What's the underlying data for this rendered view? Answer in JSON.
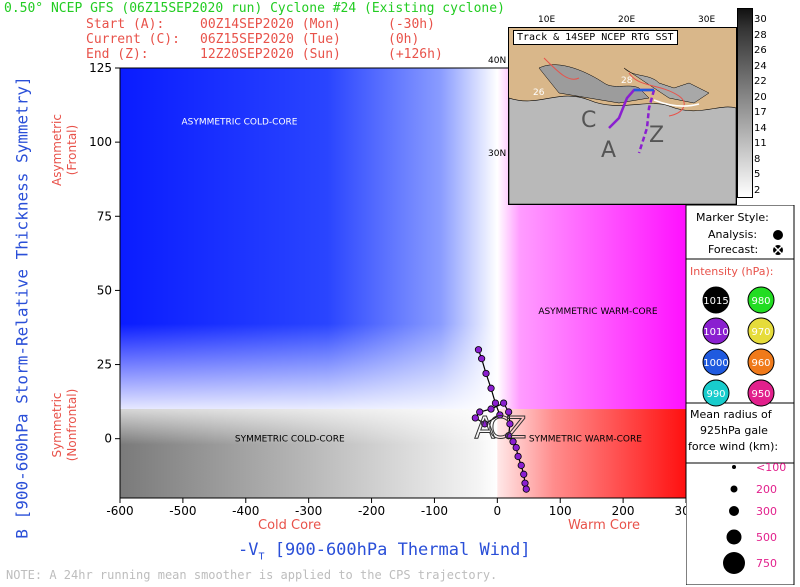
{
  "header": {
    "title": "0.50° NCEP GFS (06Z15SEP2020 run) Cyclone #24 (Existing cyclone)",
    "rows": [
      {
        "label": "Start (A):",
        "date": "00Z14SEP2020 (Mon)",
        "offset": "(-30h)"
      },
      {
        "label": "Current (C):",
        "date": "06Z15SEP2020 (Tue)",
        "offset": "(0h)"
      },
      {
        "label": "End (Z):",
        "date": "12Z20SEP2020 (Sun)",
        "offset": "(+126h)"
      }
    ]
  },
  "chart_data": {
    "type": "scatter",
    "title": "",
    "xlabel": "-Vᴛᴸ [900-600hPa Thermal Wind]",
    "xlabel_main": "[900-600hPa Thermal Wind]",
    "xlabel_prefix": "-V",
    "xlabel_sup": "L",
    "xlabel_sub": "T",
    "ylabel": "B [900-600hPa Storm-Relative Thickness Symmetry]",
    "xlim": [
      -600,
      300
    ],
    "ylim": [
      -20,
      125
    ],
    "x_ticks": [
      -600,
      -500,
      -400,
      -300,
      -200,
      -100,
      0,
      100,
      200,
      300
    ],
    "y_ticks": [
      0,
      25,
      50,
      75,
      100,
      125
    ],
    "x_side_labels": {
      "left": "Cold Core",
      "right": "Warm Core"
    },
    "y_side_labels": {
      "top": "Asymmetric (Frontal)",
      "top_lines": [
        "Asymmetric",
        "(Frontal)"
      ],
      "bottom": "Symmetric (Nonfrontal)",
      "bottom_lines": [
        "Symmetric",
        "(Nonfrontal)"
      ]
    },
    "quadrants": [
      {
        "name": "ASYMMETRIC COLD-CORE",
        "x": -410,
        "y": 107
      },
      {
        "name": "ASYMMETRIC WARM-CORE",
        "x": 160,
        "y": 43
      },
      {
        "name": "SYMMETRIC COLD-CORE",
        "x": -330,
        "y": 0
      },
      {
        "name": "SYMMETRIC WARM-CORE",
        "x": 140,
        "y": 0
      }
    ],
    "track": {
      "start_label": "A",
      "current_label": "C",
      "end_label": "Z",
      "points": [
        {
          "x": -30,
          "y": 30
        },
        {
          "x": -25,
          "y": 27
        },
        {
          "x": -18,
          "y": 22
        },
        {
          "x": -10,
          "y": 17
        },
        {
          "x": -3,
          "y": 12
        },
        {
          "x": 4,
          "y": 8
        },
        {
          "x": -20,
          "y": 5
        },
        {
          "x": -35,
          "y": 7
        },
        {
          "x": -28,
          "y": 9
        },
        {
          "x": -10,
          "y": 10
        },
        {
          "x": 10,
          "y": 12
        },
        {
          "x": 18,
          "y": 9
        },
        {
          "x": 20,
          "y": 5
        },
        {
          "x": 18,
          "y": 1
        },
        {
          "x": 25,
          "y": -1
        },
        {
          "x": 30,
          "y": -3
        },
        {
          "x": 33,
          "y": -6
        },
        {
          "x": 38,
          "y": -9
        },
        {
          "x": 42,
          "y": -12
        },
        {
          "x": 44,
          "y": -15
        },
        {
          "x": 46,
          "y": -17
        }
      ],
      "a_pos": {
        "x": -20,
        "y": 5
      },
      "c_pos": {
        "x": 2,
        "y": 5
      },
      "z_pos": {
        "x": 30,
        "y": 5
      }
    }
  },
  "inset_map": {
    "title": "Track & 14SEP NCEP RTG SST",
    "lon_labels": [
      "10E",
      "20E",
      "30E"
    ],
    "lat_labels": [
      "40N",
      "30N"
    ],
    "sst_labels": [
      "26",
      "28"
    ],
    "colorbar_values": [
      "30",
      "28",
      "26",
      "24",
      "22",
      "20",
      "17",
      "14",
      "11",
      "8",
      "5",
      "2"
    ]
  },
  "legend": {
    "marker_style_title": "Marker Style:",
    "analysis_label": "Analysis:",
    "forecast_label": "Forecast:",
    "intensity_title": "Intensity (hPa):",
    "intensity": [
      {
        "value": "1015",
        "color": "#000000"
      },
      {
        "value": "980",
        "color": "#22dd22"
      },
      {
        "value": "1010",
        "color": "#8a1fd0"
      },
      {
        "value": "970",
        "color": "#e6dc3a"
      },
      {
        "value": "1000",
        "color": "#1f5adf"
      },
      {
        "value": "960",
        "color": "#f07a1a"
      },
      {
        "value": "990",
        "color": "#18cccc"
      },
      {
        "value": "950",
        "color": "#e2208c"
      }
    ],
    "radius_title_lines": [
      "Mean radius of",
      "925hPa gale",
      "force wind (km):"
    ],
    "radius": [
      "<100",
      "200",
      "300",
      "500",
      "750"
    ]
  },
  "footer": "NOTE: A 24hr running mean smoother is applied to the CPS trajectory.",
  "colors": {
    "title_green": "#22cc22",
    "text_red": "#e8524a",
    "axis_blue": "#2a4fd8",
    "track_purple": "#8a1fd0"
  }
}
